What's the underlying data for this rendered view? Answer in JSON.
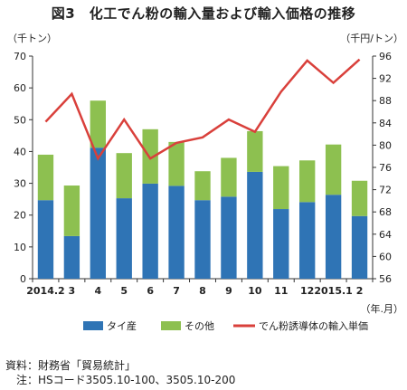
{
  "title": "図3　化工でん粉の輸入量および輸入価格の推移",
  "chart_data": {
    "type": "bar",
    "stacked": true,
    "categories": [
      "2014.2",
      "3",
      "4",
      "5",
      "6",
      "7",
      "8",
      "9",
      "10",
      "11",
      "12",
      "2015.1",
      "2"
    ],
    "series": [
      {
        "name": "タイ産",
        "color": "#2f74b5",
        "axis": "left",
        "values": [
          24.7,
          13.4,
          41.2,
          25.3,
          29.9,
          29.2,
          24.7,
          25.8,
          33.6,
          21.9,
          24.1,
          26.4,
          19.7
        ]
      },
      {
        "name": "その他",
        "color": "#8dc050",
        "axis": "left",
        "values": [
          14.3,
          15.9,
          14.8,
          14.2,
          17.1,
          13.8,
          9.1,
          12.2,
          12.8,
          13.5,
          13.1,
          15.8,
          11.1
        ]
      },
      {
        "name": "でん粉誘導体の輸入単価",
        "type": "line",
        "color": "#d9403b",
        "axis": "right",
        "values": [
          84.2,
          89.2,
          77.6,
          84.6,
          77.6,
          80.4,
          81.4,
          84.6,
          82.4,
          89.6,
          95.2,
          91.2,
          95.4
        ]
      }
    ],
    "ylabel_left": "（千トン）",
    "ylabel_right": "（千円/トン）",
    "xunit": "（年.月）",
    "ylim_left": [
      0,
      70
    ],
    "yticks_left": [
      "0",
      "10",
      "20",
      "30",
      "40",
      "50",
      "60",
      "70"
    ],
    "ylim_right": [
      56,
      96
    ],
    "yticks_right": [
      "56",
      "60",
      "64",
      "68",
      "72",
      "76",
      "80",
      "84",
      "88",
      "92",
      "96"
    ],
    "legend_position": "bottom",
    "grid": false
  },
  "source": "資料：財務省「貿易統計」",
  "note": "　注：HSコード3505.10-100、3505.10-200"
}
